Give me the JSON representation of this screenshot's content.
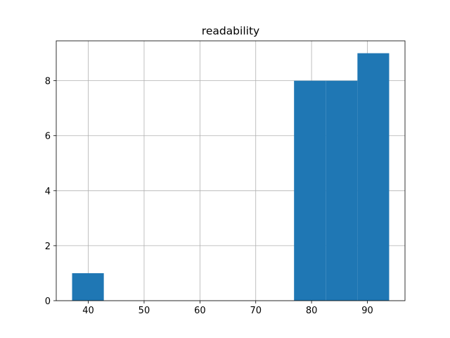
{
  "chart_data": {
    "type": "histogram",
    "title": "readability",
    "bins": [
      37.1,
      42.78,
      48.46,
      54.14,
      59.82,
      65.5,
      71.18,
      76.86,
      82.54,
      88.22,
      93.9
    ],
    "values": [
      1,
      0,
      0,
      0,
      0,
      0,
      0,
      8,
      8,
      9
    ],
    "color": "#1f77b4",
    "xlim": [
      34.26,
      96.74
    ],
    "xticks": [
      40,
      50,
      60,
      70,
      80,
      90
    ],
    "ylim": [
      0,
      9.45
    ],
    "yticks": [
      0,
      2,
      4,
      6,
      8
    ],
    "grid": true
  }
}
